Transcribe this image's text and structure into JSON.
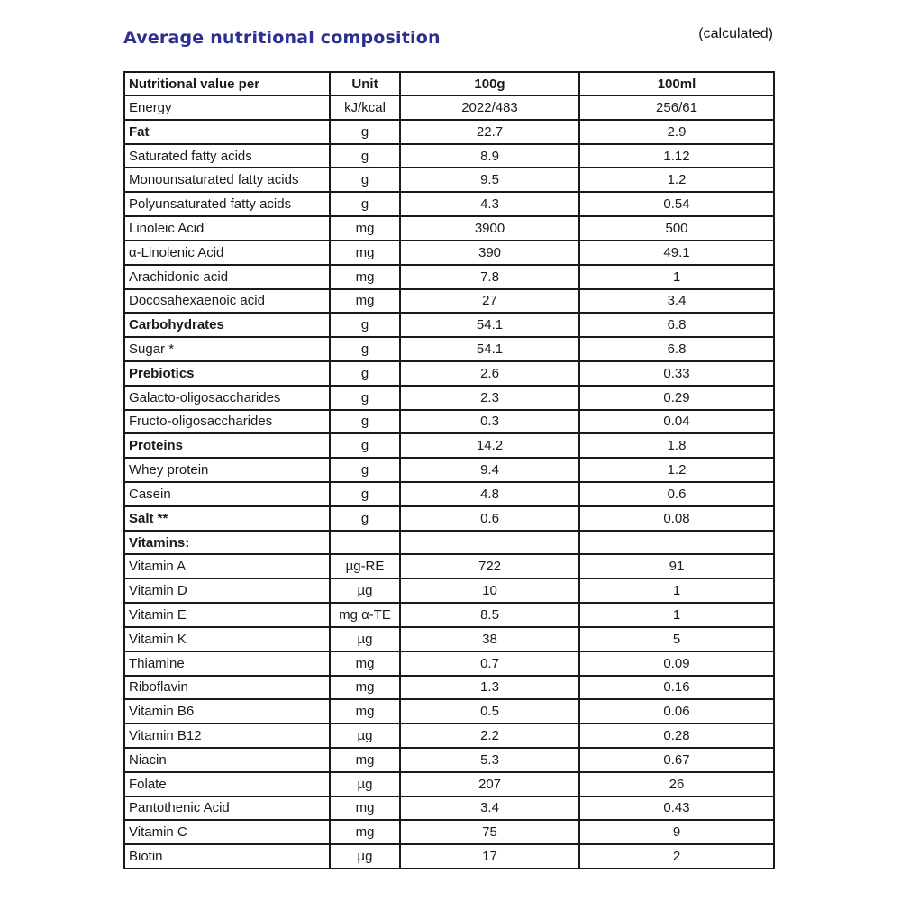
{
  "page": {
    "title": "Average nutritional composition",
    "note": "(calculated)"
  },
  "colors": {
    "title": "#2b2f90",
    "text": "#1a1a1a",
    "border": "#1a1a1a",
    "background": "#ffffff"
  },
  "table": {
    "headers": [
      "Nutritional value per",
      "Unit",
      "100g",
      "100ml"
    ],
    "rows": [
      {
        "label": "Energy",
        "unit": "kJ/kcal",
        "per100g": "2022/483",
        "per100ml": "256/61",
        "bold": false
      },
      {
        "label": "Fat",
        "unit": "g",
        "per100g": "22.7",
        "per100ml": "2.9",
        "bold": true
      },
      {
        "label": "Saturated fatty acids",
        "unit": "g",
        "per100g": "8.9",
        "per100ml": "1.12",
        "bold": false
      },
      {
        "label": "Monounsaturated fatty acids",
        "unit": "g",
        "per100g": "9.5",
        "per100ml": "1.2",
        "bold": false
      },
      {
        "label": "Polyunsaturated fatty acids",
        "unit": "g",
        "per100g": "4.3",
        "per100ml": "0.54",
        "bold": false
      },
      {
        "label": "Linoleic Acid",
        "unit": "mg",
        "per100g": "3900",
        "per100ml": "500",
        "bold": false
      },
      {
        "label": "α-Linolenic Acid",
        "unit": "mg",
        "per100g": "390",
        "per100ml": "49.1",
        "bold": false
      },
      {
        "label": "Arachidonic acid",
        "unit": "mg",
        "per100g": "7.8",
        "per100ml": "1",
        "bold": false
      },
      {
        "label": "Docosahexaenoic acid",
        "unit": "mg",
        "per100g": "27",
        "per100ml": "3.4",
        "bold": false
      },
      {
        "label": "Carbohydrates",
        "unit": "g",
        "per100g": "54.1",
        "per100ml": "6.8",
        "bold": true
      },
      {
        "label": "Sugar *",
        "unit": "g",
        "per100g": "54.1",
        "per100ml": "6.8",
        "bold": false
      },
      {
        "label": "Prebiotics",
        "unit": "g",
        "per100g": "2.6",
        "per100ml": "0.33",
        "bold": true
      },
      {
        "label": "Galacto-oligosaccharides",
        "unit": "g",
        "per100g": "2.3",
        "per100ml": "0.29",
        "bold": false
      },
      {
        "label": "Fructo-oligosaccharides",
        "unit": "g",
        "per100g": "0.3",
        "per100ml": "0.04",
        "bold": false
      },
      {
        "label": "Proteins",
        "unit": "g",
        "per100g": "14.2",
        "per100ml": "1.8",
        "bold": true
      },
      {
        "label": "Whey protein",
        "unit": "g",
        "per100g": "9.4",
        "per100ml": "1.2",
        "bold": false
      },
      {
        "label": "Casein",
        "unit": "g",
        "per100g": "4.8",
        "per100ml": "0.6",
        "bold": false
      },
      {
        "label": "Salt **",
        "unit": "g",
        "per100g": "0.6",
        "per100ml": "0.08",
        "bold": true
      },
      {
        "label": "Vitamins:",
        "unit": "",
        "per100g": "",
        "per100ml": "",
        "bold": true
      },
      {
        "label": "Vitamin A",
        "unit": "µg-RE",
        "per100g": "722",
        "per100ml": "91",
        "bold": false
      },
      {
        "label": "Vitamin D",
        "unit": "µg",
        "per100g": "10",
        "per100ml": "1",
        "bold": false
      },
      {
        "label": "Vitamin E",
        "unit": "mg α-TE",
        "per100g": "8.5",
        "per100ml": "1",
        "bold": false
      },
      {
        "label": "Vitamin K",
        "unit": "µg",
        "per100g": "38",
        "per100ml": "5",
        "bold": false
      },
      {
        "label": "Thiamine",
        "unit": "mg",
        "per100g": "0.7",
        "per100ml": "0.09",
        "bold": false
      },
      {
        "label": "Riboflavin",
        "unit": "mg",
        "per100g": "1.3",
        "per100ml": "0.16",
        "bold": false
      },
      {
        "label": "Vitamin B6",
        "unit": "mg",
        "per100g": "0.5",
        "per100ml": "0.06",
        "bold": false
      },
      {
        "label": "Vitamin B12",
        "unit": "µg",
        "per100g": "2.2",
        "per100ml": "0.28",
        "bold": false
      },
      {
        "label": "Niacin",
        "unit": "mg",
        "per100g": "5.3",
        "per100ml": "0.67",
        "bold": false
      },
      {
        "label": "Folate",
        "unit": "µg",
        "per100g": "207",
        "per100ml": "26",
        "bold": false
      },
      {
        "label": "Pantothenic Acid",
        "unit": "mg",
        "per100g": "3.4",
        "per100ml": "0.43",
        "bold": false
      },
      {
        "label": "Vitamin C",
        "unit": "mg",
        "per100g": "75",
        "per100ml": "9",
        "bold": false
      },
      {
        "label": "Biotin",
        "unit": "µg",
        "per100g": "17",
        "per100ml": "2",
        "bold": false
      }
    ]
  }
}
